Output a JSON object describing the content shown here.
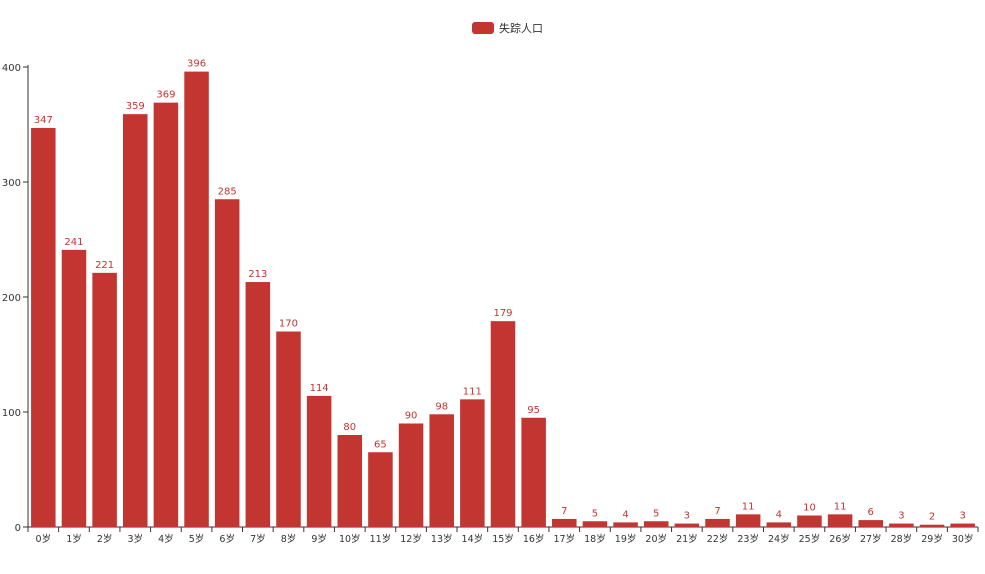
{
  "chart_data": {
    "type": "bar",
    "title": "",
    "xlabel": "",
    "ylabel": "",
    "ylim": [
      0,
      400
    ],
    "yticks": [
      0,
      100,
      200,
      300,
      400
    ],
    "grid": false,
    "legend_position": "top-center",
    "categories": [
      "0岁",
      "1岁",
      "2岁",
      "3岁",
      "4岁",
      "5岁",
      "6岁",
      "7岁",
      "8岁",
      "9岁",
      "10岁",
      "11岁",
      "12岁",
      "13岁",
      "14岁",
      "15岁",
      "16岁",
      "17岁",
      "18岁",
      "19岁",
      "20岁",
      "21岁",
      "22岁",
      "23岁",
      "24岁",
      "25岁",
      "26岁",
      "27岁",
      "28岁",
      "29岁",
      "30岁"
    ],
    "series": [
      {
        "name": "失踪人口",
        "color": "#c23531",
        "values": [
          347,
          241,
          221,
          359,
          369,
          396,
          285,
          213,
          170,
          114,
          80,
          65,
          90,
          98,
          111,
          179,
          95,
          7,
          5,
          4,
          5,
          3,
          7,
          11,
          4,
          10,
          11,
          6,
          3,
          2,
          3
        ]
      }
    ]
  }
}
